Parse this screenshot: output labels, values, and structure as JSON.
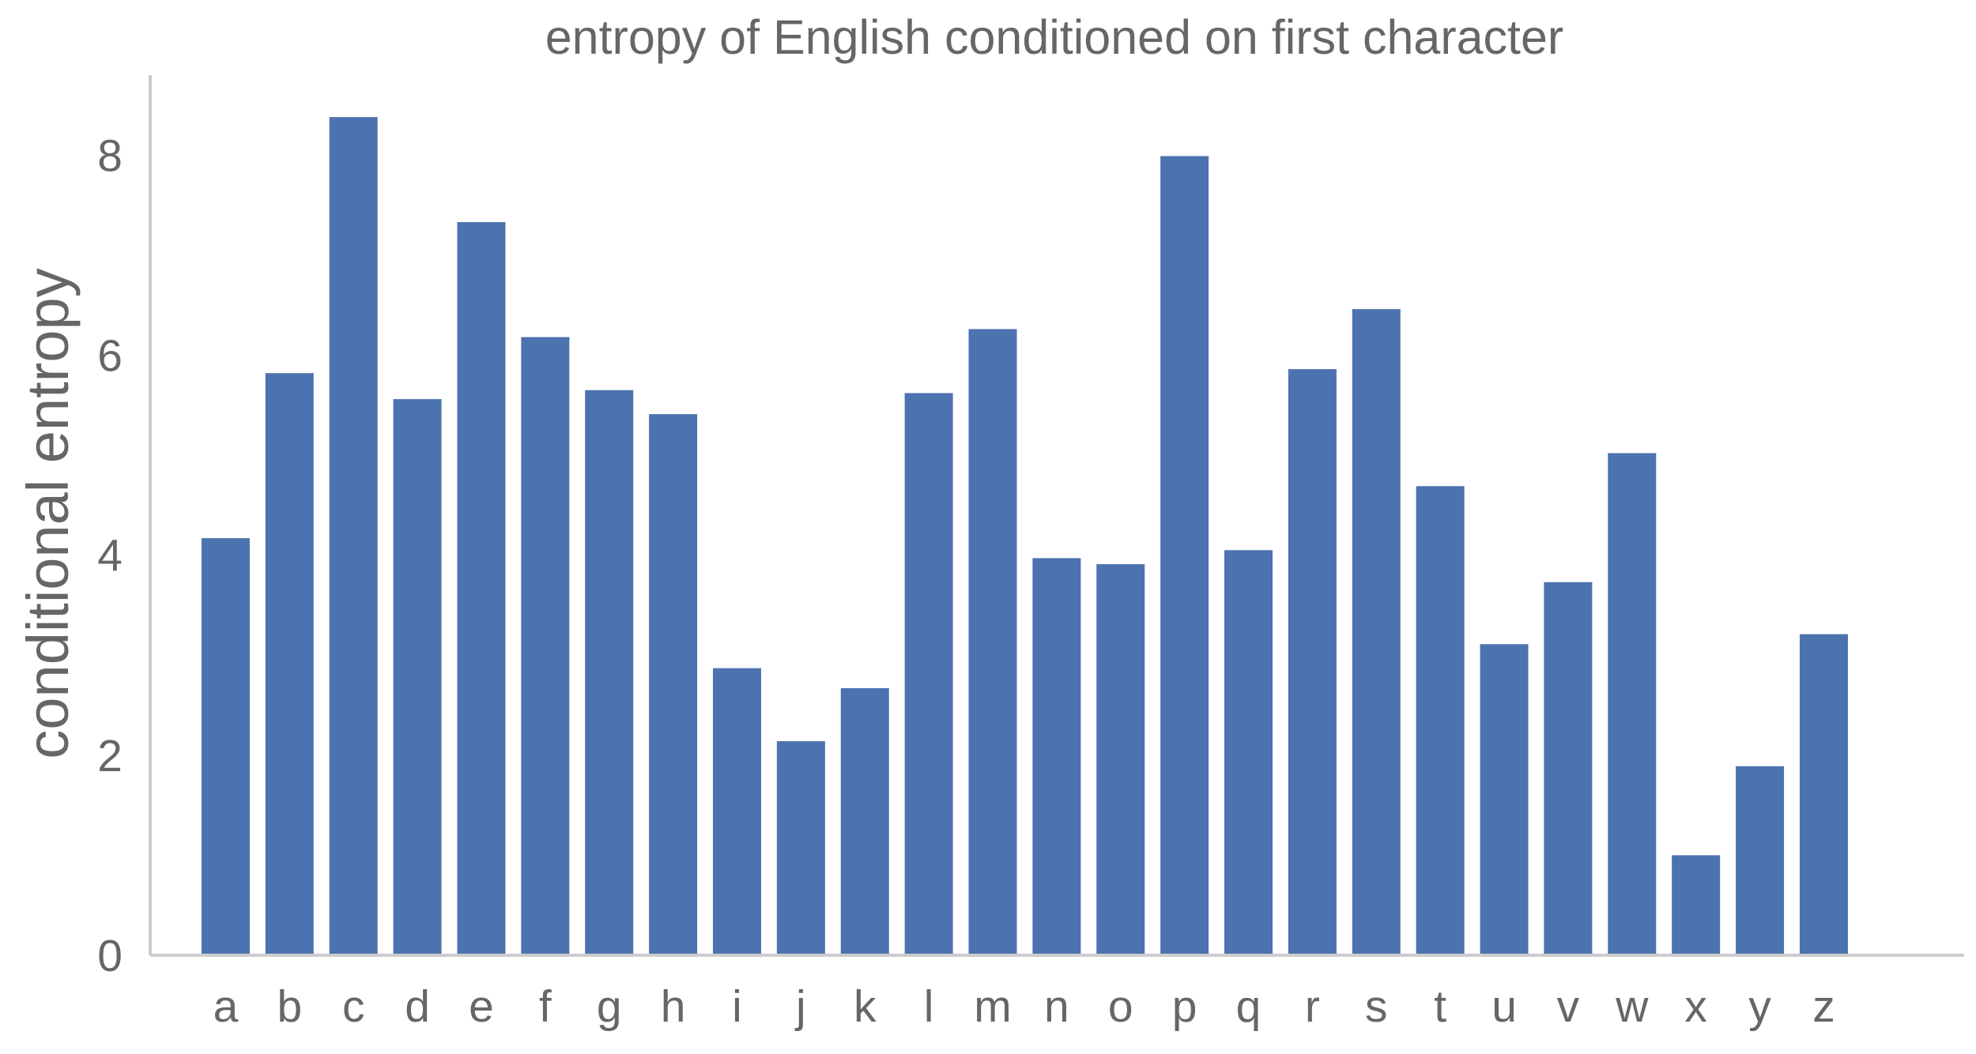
{
  "chart_data": {
    "type": "bar",
    "title": "entropy of English conditioned on first character",
    "xlabel": "",
    "ylabel": "conditional entropy",
    "categories": [
      "a",
      "b",
      "c",
      "d",
      "e",
      "f",
      "g",
      "h",
      "i",
      "j",
      "k",
      "l",
      "m",
      "n",
      "o",
      "p",
      "q",
      "r",
      "s",
      "t",
      "u",
      "v",
      "w",
      "x",
      "y",
      "z"
    ],
    "values": [
      4.17,
      5.82,
      8.38,
      5.56,
      7.33,
      6.18,
      5.65,
      5.41,
      2.87,
      2.14,
      2.67,
      5.62,
      6.26,
      3.97,
      3.91,
      7.99,
      4.05,
      5.86,
      6.46,
      4.69,
      3.11,
      3.73,
      5.02,
      1.0,
      1.89,
      3.21
    ],
    "yticks": [
      0,
      2,
      4,
      6,
      8
    ],
    "ylim": [
      0,
      8.8
    ],
    "bar_color": "#4c72b0",
    "text_color": "#666666",
    "axis_color": "#cccccc",
    "grid": false,
    "legend": false
  }
}
